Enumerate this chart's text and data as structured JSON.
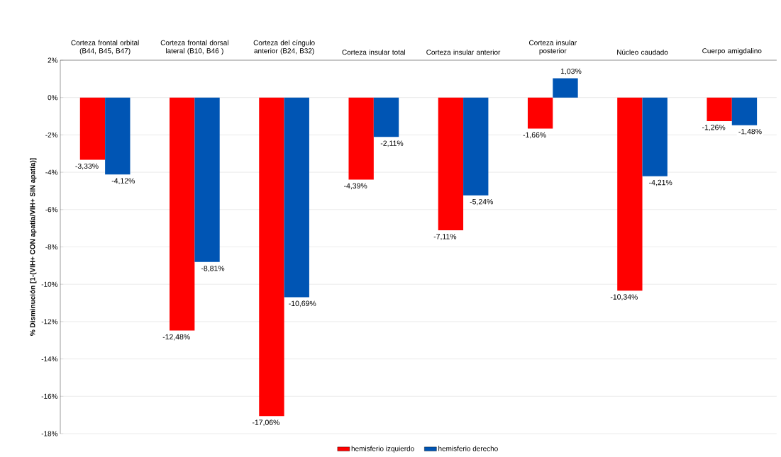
{
  "chart_data": {
    "type": "bar",
    "categories": [
      "Corteza frontal orbital (B44, B45, B47)",
      "Corteza frontal dorsal lateral (B10, B46 )",
      "Corteza del cíngulo anterior (B24, B32)",
      "Corteza insular total",
      "Corteza insular anterior",
      "Corteza insular posterior",
      "Núcleo caudado",
      "Cuerpo amigdalino"
    ],
    "series": [
      {
        "name": "hemisferio izquierdo",
        "color": "#ff0000",
        "values": [
          -3.33,
          -12.48,
          -17.06,
          -4.39,
          -7.11,
          -1.66,
          -10.34,
          -1.26
        ],
        "value_labels": [
          "-3,33%",
          "-12,48%",
          "-17,06%",
          "-4,39%",
          "-7,11%",
          "-1,66%",
          "-10,34%",
          "-1,26%"
        ]
      },
      {
        "name": "hemisferio derecho",
        "color": "#0055b4",
        "values": [
          -4.12,
          -8.81,
          -10.69,
          -2.11,
          -5.24,
          1.03,
          -4.21,
          -1.48
        ],
        "value_labels": [
          "-4,12%",
          "-8,81%",
          "-10,69%",
          "-2,11%",
          "-5,24%",
          "1,03%",
          "-4,21%",
          "-1,48%"
        ]
      }
    ],
    "ylabel": "% Disminución [1-(VIH+ CON apatía/VIH+ SIN apatía)]",
    "ylim": [
      -18,
      2
    ],
    "yticks": [
      {
        "value": 2,
        "label": "2%"
      },
      {
        "value": 0,
        "label": "0%"
      },
      {
        "value": -2,
        "label": "-2%"
      },
      {
        "value": -4,
        "label": "-4%"
      },
      {
        "value": -6,
        "label": "-6%"
      },
      {
        "value": -8,
        "label": "-8%"
      },
      {
        "value": -10,
        "label": "-10%"
      },
      {
        "value": -12,
        "label": "-12%"
      },
      {
        "value": -14,
        "label": "-14%"
      },
      {
        "value": -16,
        "label": "-16%"
      },
      {
        "value": -18,
        "label": "-18%"
      }
    ],
    "grid": "y",
    "legend": "bottom"
  }
}
